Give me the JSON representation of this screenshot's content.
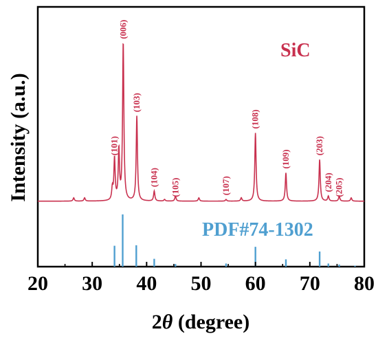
{
  "chart_data": {
    "type": "line",
    "xlabel_prefix": "2",
    "xlabel_theta": "θ",
    "xlabel_suffix": " (degree)",
    "ylabel": "Intensity (a.u.)",
    "xlim": [
      20,
      80
    ],
    "x_ticks": [
      "20",
      "30",
      "40",
      "50",
      "60",
      "70",
      "80"
    ],
    "grid": false,
    "colors": {
      "xrd": "#c8304e",
      "pdf": "#4f9fd0",
      "axis": "#000000"
    },
    "series": [
      {
        "name": "SiC",
        "color": "#c8304e",
        "baseline": 0.03,
        "peaks": [
          {
            "x": 26.6,
            "y": 0.02,
            "label": ""
          },
          {
            "x": 28.6,
            "y": 0.02,
            "label": ""
          },
          {
            "x": 33.7,
            "y": 0.1,
            "label": ""
          },
          {
            "x": 34.1,
            "y": 0.28,
            "label": "(101)"
          },
          {
            "x": 34.9,
            "y": 0.33,
            "label": ""
          },
          {
            "x": 35.7,
            "y": 0.98,
            "label": "(006)"
          },
          {
            "x": 38.2,
            "y": 0.54,
            "label": "(103)"
          },
          {
            "x": 41.4,
            "y": 0.09,
            "label": "(104)"
          },
          {
            "x": 43.3,
            "y": 0.04,
            "label": ""
          },
          {
            "x": 45.3,
            "y": 0.03,
            "label": "(105)"
          },
          {
            "x": 49.6,
            "y": 0.02,
            "label": ""
          },
          {
            "x": 54.6,
            "y": 0.04,
            "label": "(107)"
          },
          {
            "x": 57.4,
            "y": 0.05,
            "label": ""
          },
          {
            "x": 60.0,
            "y": 0.44,
            "label": "(108)"
          },
          {
            "x": 65.6,
            "y": 0.2,
            "label": "(109)"
          },
          {
            "x": 71.8,
            "y": 0.28,
            "label": "(203)"
          },
          {
            "x": 73.4,
            "y": 0.06,
            "label": "(204)"
          },
          {
            "x": 75.4,
            "y": 0.03,
            "label": "(205)"
          },
          {
            "x": 77.6,
            "y": 0.02,
            "label": ""
          }
        ]
      },
      {
        "name": "PDF#74-1302",
        "color": "#4f9fd0",
        "sticks": [
          {
            "x": 34.1,
            "y": 0.4
          },
          {
            "x": 35.6,
            "y": 1.0
          },
          {
            "x": 38.1,
            "y": 0.41
          },
          {
            "x": 41.4,
            "y": 0.15
          },
          {
            "x": 45.3,
            "y": 0.05
          },
          {
            "x": 54.6,
            "y": 0.06
          },
          {
            "x": 60.0,
            "y": 0.38
          },
          {
            "x": 65.6,
            "y": 0.14
          },
          {
            "x": 71.8,
            "y": 0.29
          },
          {
            "x": 73.4,
            "y": 0.06
          },
          {
            "x": 75.4,
            "y": 0.04
          },
          {
            "x": 78.3,
            "y": 0.02
          }
        ]
      }
    ]
  }
}
